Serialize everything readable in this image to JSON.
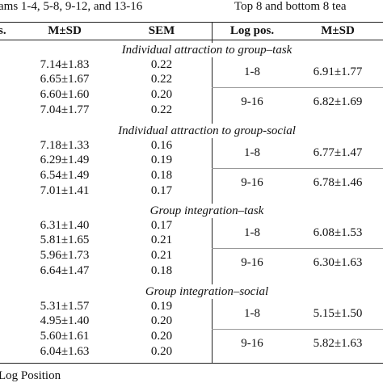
{
  "header": {
    "left": "ams 1-4, 5-8, 9-12, and 13-16",
    "right": "Top 8 and bottom 8 tea"
  },
  "columns": [
    "s.",
    "M±SD",
    "SEM",
    "Log pos.",
    "M±SD"
  ],
  "sections": [
    {
      "title": "Individual attraction to group–task",
      "rows": [
        [
          "7.14±1.83",
          "0.22"
        ],
        [
          "6.65±1.67",
          "0.22"
        ],
        [
          "6.60±1.60",
          "0.20"
        ],
        [
          "7.04±1.77",
          "0.22"
        ]
      ],
      "groups": [
        [
          "1-8",
          "6.91±1.77"
        ],
        [
          "9-16",
          "6.82±1.69"
        ]
      ]
    },
    {
      "title": "Individual attraction to group-social",
      "rows": [
        [
          "7.18±1.33",
          "0.16"
        ],
        [
          "6.29±1.49",
          "0.19"
        ],
        [
          "6.54±1.49",
          "0.18"
        ],
        [
          "7.01±1.41",
          "0.17"
        ]
      ],
      "groups": [
        [
          "1-8",
          "6.77±1.47"
        ],
        [
          "9-16",
          "6.78±1.46"
        ]
      ]
    },
    {
      "title": "Group integration–task",
      "rows": [
        [
          "6.31±1.40",
          "0.17"
        ],
        [
          "5.81±1.65",
          "0.21"
        ],
        [
          "5.96±1.73",
          "0.21"
        ],
        [
          "6.64±1.47",
          "0.18"
        ]
      ],
      "groups": [
        [
          "1-8",
          "6.08±1.53"
        ],
        [
          "9-16",
          "6.30±1.63"
        ]
      ]
    },
    {
      "title": "Group integration–social",
      "rows": [
        [
          "5.31±1.57",
          "0.19"
        ],
        [
          "4.95±1.40",
          "0.20"
        ],
        [
          "5.60±1.61",
          "0.20"
        ],
        [
          "6.04±1.63",
          "0.20"
        ]
      ],
      "groups": [
        [
          "1-8",
          "5.15±1.50"
        ],
        [
          "9-16",
          "5.82±1.63"
        ]
      ]
    }
  ],
  "footnote": "Log Position"
}
